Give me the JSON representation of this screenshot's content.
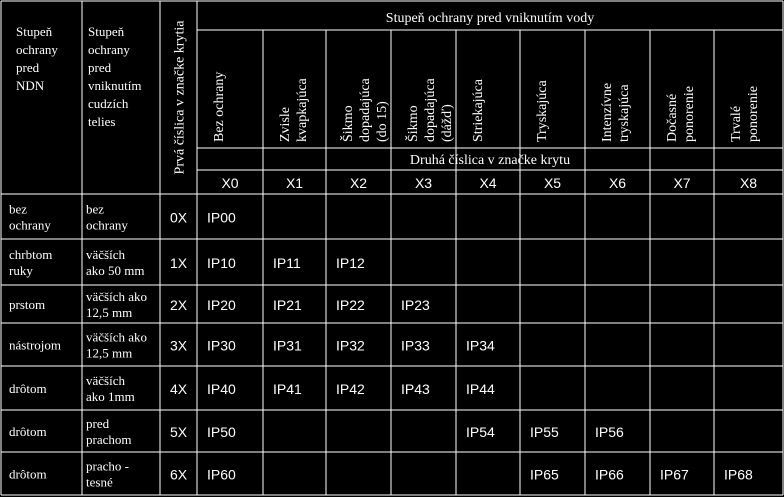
{
  "header": {
    "col1": [
      "Stupeň",
      "ochrany",
      "pred",
      "NDN"
    ],
    "col2": [
      "Stupeň",
      "ochrany",
      "pred",
      "vniknutím",
      "cudzích",
      "telies"
    ],
    "first_digit_label": "Prvá číslica v značke krytia",
    "water_title": "Stupeň ochrany pred vniknutím vody",
    "second_digit_label": "Druhá číslica v značke krytu",
    "water_levels": [
      [
        "Bez ochrany"
      ],
      [
        "Zvisle",
        "kvapkajúca"
      ],
      [
        "Šikmo",
        "dopadajúca",
        "(do 15)"
      ],
      [
        "Šikmo",
        "dopadajúca",
        "(dážď)"
      ],
      [
        "Striekajúca"
      ],
      [
        "Tryskajúca"
      ],
      [
        "Intenzívne",
        "tryskajúca"
      ],
      [
        "Dočasné",
        "ponorenie"
      ],
      [
        "Trvalé",
        "ponorenie"
      ]
    ],
    "second_digits": [
      "X0",
      "X1",
      "X2",
      "X3",
      "X4",
      "X5",
      "X6",
      "X7",
      "X8"
    ]
  },
  "rows": [
    {
      "ndn": [
        "bez",
        "ochrany"
      ],
      "solid": [
        "bez",
        "ochrany"
      ],
      "digit": "0X",
      "cells": [
        "IP00",
        "",
        "",
        "",
        "",
        "",
        "",
        "",
        ""
      ]
    },
    {
      "ndn": [
        "chrbtom",
        "ruky"
      ],
      "solid": [
        "väčších",
        "ako 50 mm"
      ],
      "digit": "1X",
      "cells": [
        "IP10",
        "IP11",
        "IP12",
        "",
        "",
        "",
        "",
        "",
        ""
      ]
    },
    {
      "ndn": [
        "prstom"
      ],
      "solid": [
        "väčších ako",
        "12,5 mm"
      ],
      "digit": "2X",
      "cells": [
        "IP20",
        "IP21",
        "IP22",
        "IP23",
        "",
        "",
        "",
        "",
        ""
      ]
    },
    {
      "ndn": [
        "nástrojom"
      ],
      "solid": [
        "väčších ako",
        "12,5 mm"
      ],
      "digit": "3X",
      "cells": [
        "IP30",
        "IP31",
        "IP32",
        "IP33",
        "IP34",
        "",
        "",
        "",
        ""
      ]
    },
    {
      "ndn": [
        "drôtom"
      ],
      "solid": [
        "väčších",
        "ako 1mm"
      ],
      "digit": "4X",
      "cells": [
        "IP40",
        "IP41",
        "IP42",
        "IP43",
        "IP44",
        "",
        "",
        "",
        ""
      ]
    },
    {
      "ndn": [
        "drôtom"
      ],
      "solid": [
        "pred",
        "prachom"
      ],
      "digit": "5X",
      "cells": [
        "IP50",
        "",
        "",
        "",
        "IP54",
        "IP55",
        "IP56",
        "",
        ""
      ]
    },
    {
      "ndn": [
        "drôtom"
      ],
      "solid": [
        "pracho -",
        "tesné"
      ],
      "digit": "6X",
      "cells": [
        "IP60",
        "",
        "",
        "",
        "",
        "IP65",
        "IP66",
        "IP67",
        "IP68"
      ]
    }
  ]
}
